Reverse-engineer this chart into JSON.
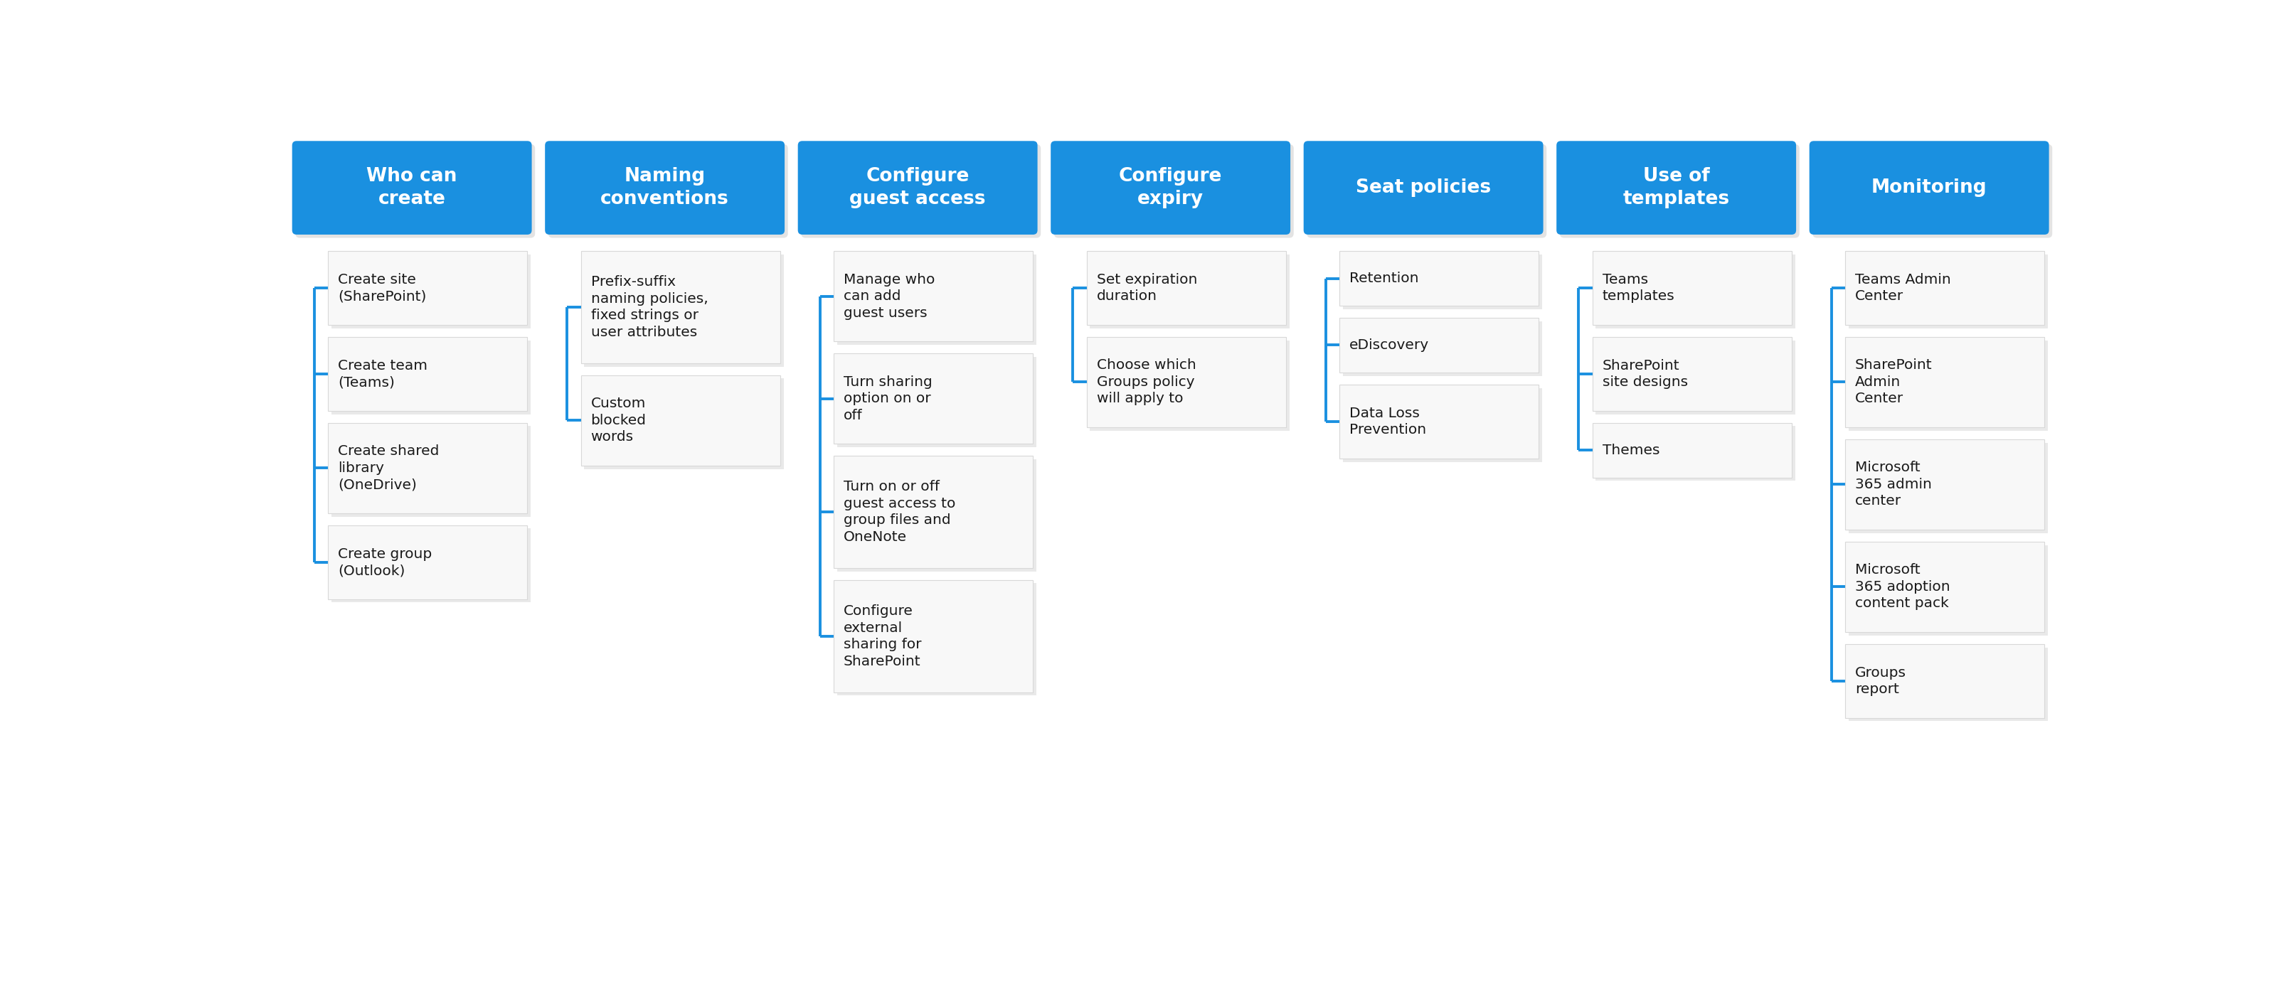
{
  "bg_color": "#ffffff",
  "header_color": "#1a90e0",
  "header_text_color": "#ffffff",
  "box_bg_color": "#f8f8f8",
  "box_border_color": "#d0d0d0",
  "box_text_color": "#1a1a1a",
  "line_color": "#1a90e0",
  "columns": [
    {
      "header": "Who can\ncreate",
      "items": [
        "Create site\n(SharePoint)",
        "Create team\n(Teams)",
        "Create shared\nlibrary\n(OneDrive)",
        "Create group\n(Outlook)"
      ]
    },
    {
      "header": "Naming\nconventions",
      "items": [
        "Prefix-suffix\nnaming policies,\nfixed strings or\nuser attributes",
        "Custom\nblocked\nwords"
      ]
    },
    {
      "header": "Configure\nguest access",
      "items": [
        "Manage who\ncan add\nguest users",
        "Turn sharing\noption on or\noff",
        "Turn on or off\nguest access to\ngroup files and\nOneNote",
        "Configure\nexternal\nsharing for\nSharePoint"
      ]
    },
    {
      "header": "Configure\nexpiry",
      "items": [
        "Set expiration\nduration",
        "Choose which\nGroups policy\nwill apply to"
      ]
    },
    {
      "header": "Seat policies",
      "items": [
        "Retention",
        "eDiscovery",
        "Data Loss\nPrevention"
      ]
    },
    {
      "header": "Use of\ntemplates",
      "items": [
        "Teams\ntemplates",
        "SharePoint\nsite designs",
        "Themes"
      ]
    },
    {
      "header": "Monitoring",
      "items": [
        "Teams Admin\nCenter",
        "SharePoint\nAdmin\nCenter",
        "Microsoft\n365 admin\ncenter",
        "Microsoft\n365 adoption\ncontent pack",
        "Groups\nreport"
      ]
    }
  ]
}
